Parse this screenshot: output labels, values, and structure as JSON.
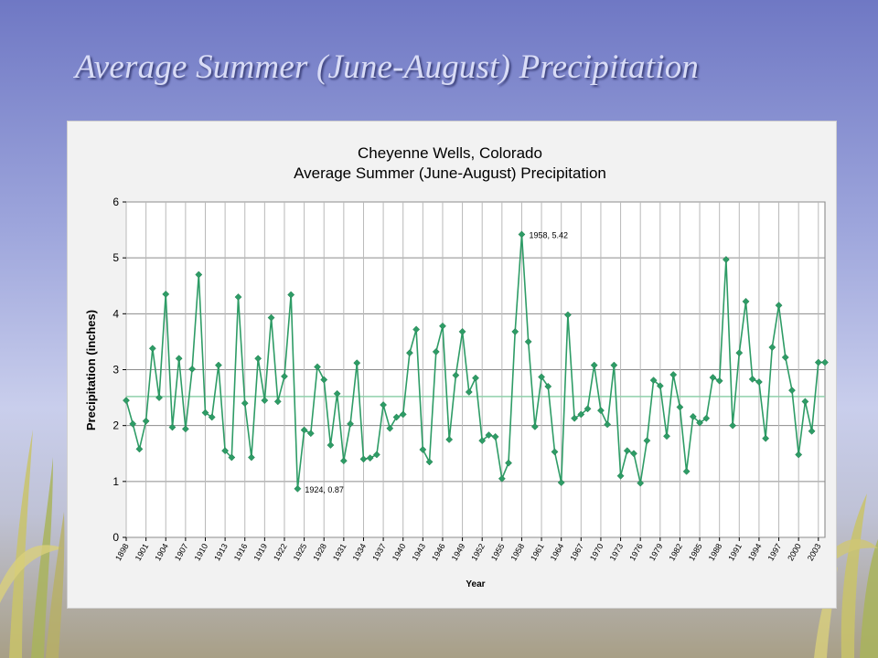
{
  "slide": {
    "title": "Average Summer (June-August) Precipitation"
  },
  "colors": {
    "series": "#2e9c66",
    "average_line": "#8fd0ab",
    "grid": "#8c8c8c",
    "plot_bg": "#ffffff",
    "chart_bg": "#f2f2f2"
  },
  "chart_data": {
    "type": "line",
    "title": "Cheyenne Wells, Colorado",
    "subtitle": "Average Summer (June-August) Precipitation",
    "xlabel": "Year",
    "ylabel": "Precipitation (inches)",
    "ylim": [
      0,
      6
    ],
    "yticks": [
      0,
      1,
      2,
      3,
      4,
      5,
      6
    ],
    "xlim": [
      1898,
      2004
    ],
    "xticks": [
      1898,
      1901,
      1904,
      1907,
      1910,
      1913,
      1916,
      1919,
      1922,
      1925,
      1928,
      1931,
      1934,
      1937,
      1940,
      1943,
      1946,
      1949,
      1952,
      1955,
      1958,
      1961,
      1964,
      1967,
      1970,
      1973,
      1976,
      1979,
      1982,
      1985,
      1988,
      1991,
      1994,
      1997,
      2000,
      2003
    ],
    "grid": true,
    "legend": "none",
    "average_value": 2.52,
    "series": [
      {
        "x": [
          1898,
          1899,
          1900,
          1901,
          1902,
          1903,
          1904,
          1905,
          1906,
          1907,
          1908,
          1909,
          1910,
          1911,
          1912,
          1913,
          1914,
          1915,
          1916,
          1917,
          1918,
          1919,
          1920,
          1921,
          1922,
          1923,
          1924,
          1925,
          1926,
          1927,
          1928,
          1929,
          1930,
          1931,
          1932,
          1933,
          1934,
          1935,
          1936,
          1937,
          1938,
          1939,
          1940,
          1941,
          1942,
          1943,
          1944,
          1945,
          1946,
          1947,
          1948,
          1949,
          1950,
          1951,
          1952,
          1953,
          1954,
          1955,
          1956,
          1957,
          1958,
          1959,
          1960,
          1961,
          1962,
          1963,
          1964,
          1965,
          1966,
          1967,
          1968,
          1969,
          1970,
          1971,
          1972,
          1973,
          1974,
          1975,
          1976,
          1977,
          1978,
          1979,
          1980,
          1981,
          1982,
          1983,
          1984,
          1985,
          1986,
          1987,
          1988,
          1989,
          1990,
          1991,
          1992,
          1993,
          1994,
          1995,
          1996,
          1997,
          1998,
          1999,
          2000,
          2001,
          2002,
          2003,
          2004
        ],
        "values": [
          2.45,
          2.03,
          1.58,
          2.08,
          3.38,
          2.5,
          4.35,
          1.97,
          3.2,
          1.94,
          3.01,
          4.7,
          2.23,
          2.15,
          3.08,
          1.55,
          1.43,
          4.3,
          2.4,
          1.43,
          3.2,
          2.45,
          3.93,
          2.43,
          2.88,
          4.34,
          0.87,
          1.92,
          1.86,
          3.05,
          2.82,
          1.65,
          2.57,
          1.37,
          2.03,
          3.12,
          1.4,
          1.42,
          1.48,
          2.37,
          1.95,
          2.15,
          2.2,
          3.3,
          3.72,
          1.57,
          1.35,
          3.32,
          3.78,
          1.75,
          2.9,
          3.68,
          2.6,
          2.85,
          1.73,
          1.83,
          1.8,
          1.05,
          1.33,
          3.68,
          5.42,
          3.5,
          1.98,
          2.87,
          2.7,
          1.53,
          0.98,
          3.98,
          2.13,
          2.2,
          2.3,
          3.08,
          2.27,
          2.02,
          3.08,
          1.1,
          1.55,
          1.5,
          0.97,
          1.73,
          2.81,
          2.71,
          1.81,
          2.91,
          2.33,
          1.18,
          2.16,
          2.05,
          2.13,
          2.86,
          2.8,
          4.97,
          2.0,
          3.3,
          4.22,
          2.83,
          2.78,
          1.77,
          3.4,
          4.15,
          3.22,
          2.63,
          1.48,
          2.43,
          1.9,
          3.13,
          3.13
        ]
      }
    ],
    "annotations": [
      {
        "x": 1958,
        "y": 5.42,
        "text": "1958, 5.42"
      },
      {
        "x": 1924,
        "y": 0.87,
        "text": "1924, 0.87"
      }
    ]
  }
}
